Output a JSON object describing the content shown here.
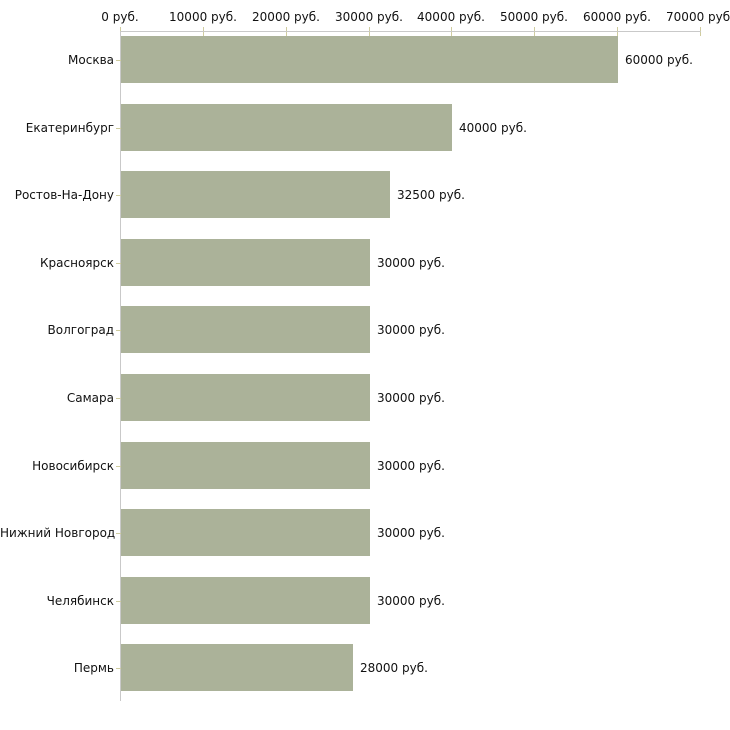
{
  "chart_data": {
    "type": "bar",
    "orientation": "horizontal",
    "title": "",
    "xlabel": "",
    "ylabel": "",
    "categories": [
      "Москва",
      "Екатеринбург",
      "Ростов-На-Дону",
      "Красноярск",
      "Волгоград",
      "Самара",
      "Новосибирск",
      "Нижний Новгород",
      "Челябинск",
      "Пермь"
    ],
    "values": [
      60000,
      40000,
      32500,
      30000,
      30000,
      30000,
      30000,
      30000,
      30000,
      28000
    ],
    "value_labels": [
      "60000 руб.",
      "40000 руб.",
      "32500 руб.",
      "30000 руб.",
      "30000 руб.",
      "30000 руб.",
      "30000 руб.",
      "30000 руб.",
      "30000 руб.",
      "28000 руб."
    ],
    "x_axis": {
      "position": "top",
      "min": 0,
      "max": 70000,
      "ticks": [
        0,
        10000,
        20000,
        30000,
        40000,
        50000,
        60000,
        70000
      ],
      "tick_labels": [
        "0 руб.",
        "10000 руб.",
        "20000 руб.",
        "30000 руб.",
        "40000 руб.",
        "50000 руб.",
        "60000 руб.",
        "70000 руб."
      ]
    },
    "grid": false,
    "legend": false,
    "colors": {
      "bar": "#abb299",
      "tick": "#cfcc9f",
      "axis": "#c9c9c9",
      "text": "#111111",
      "background": "#ffffff"
    }
  }
}
